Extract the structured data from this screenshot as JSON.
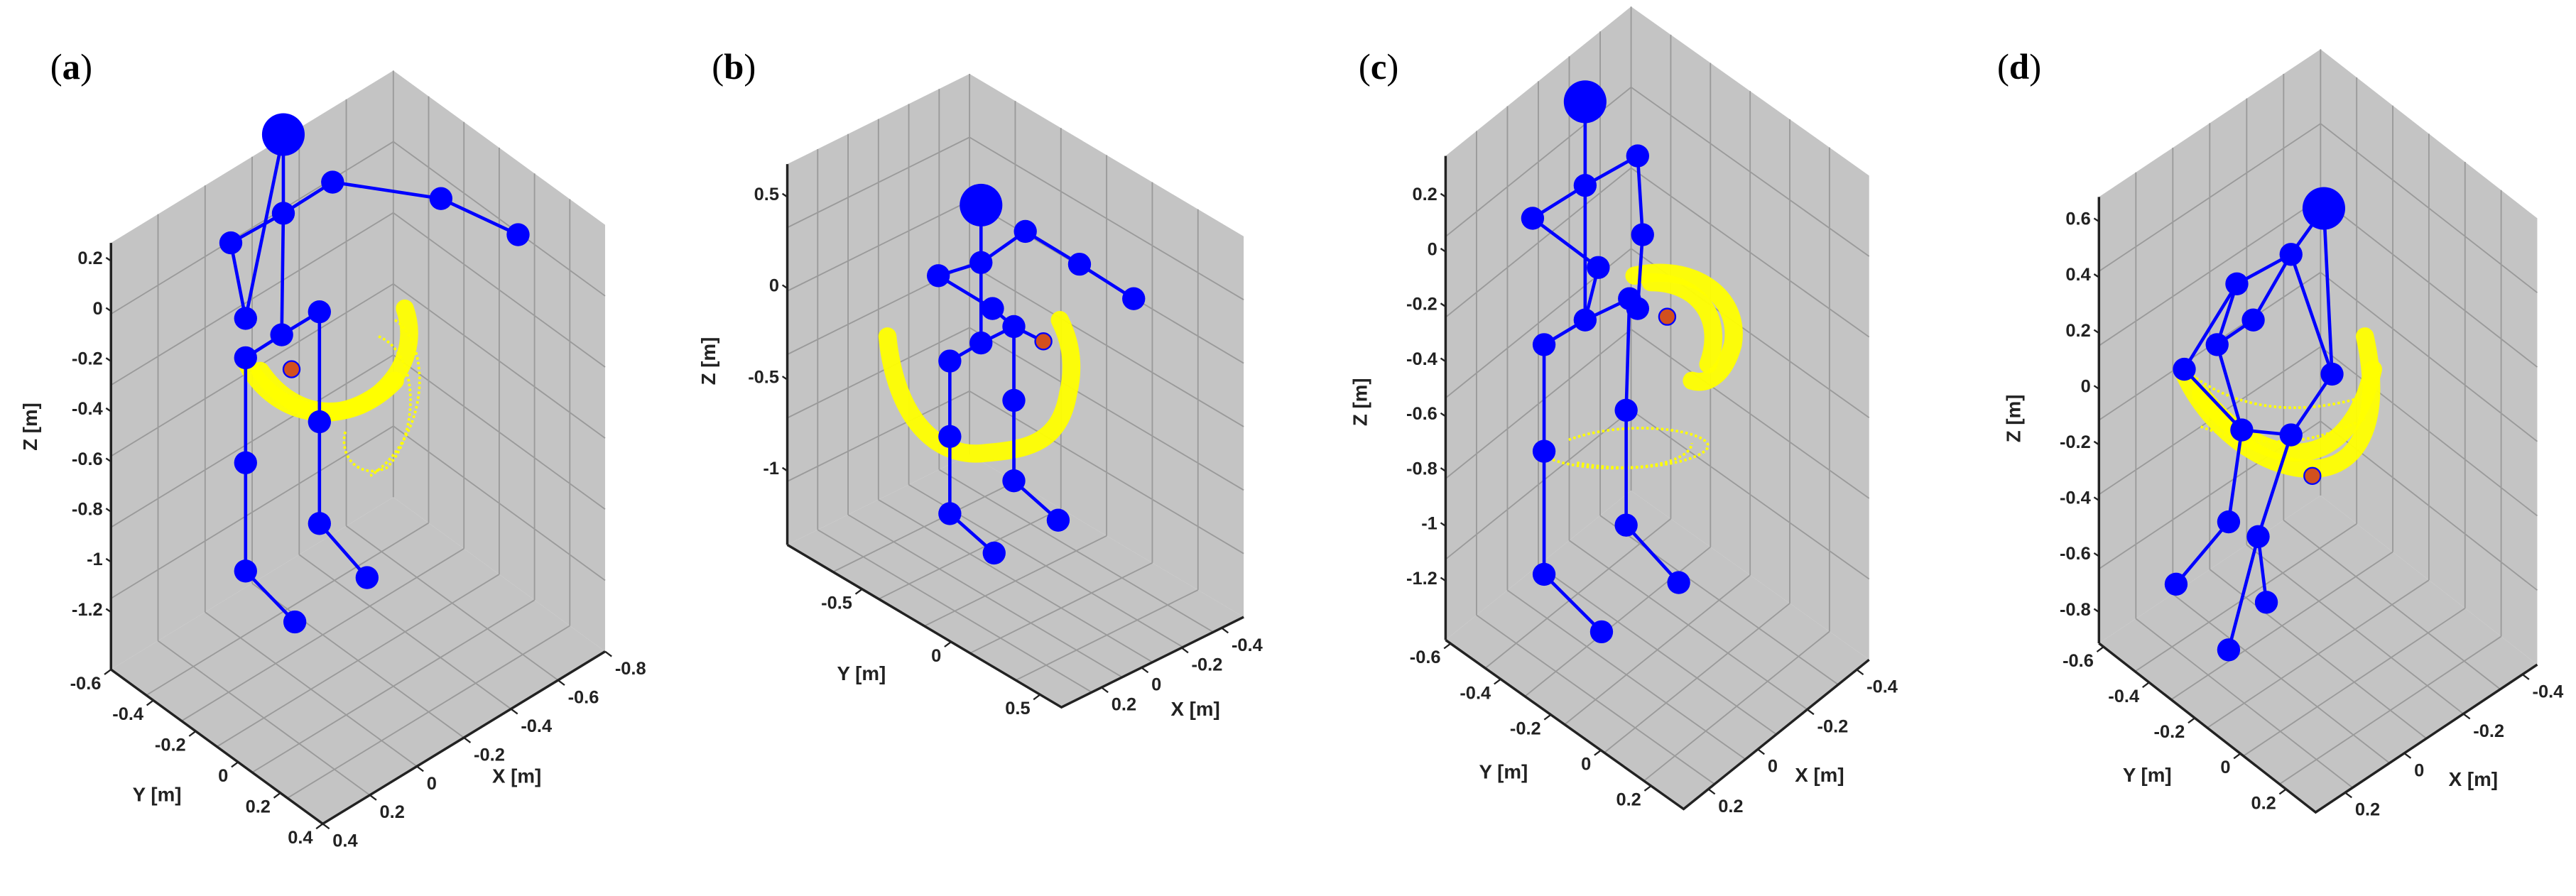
{
  "colors": {
    "skeleton": "#0000ff",
    "trajectory": "#ffff00",
    "marker": "#d2501e",
    "pane": "#c4c4c4",
    "grid": "#9a9a9a"
  },
  "chart_data": [
    {
      "type": "scatter",
      "panel": "a",
      "label_letter": "a",
      "xlabel": "X [m]",
      "ylabel": "Y [m]",
      "zlabel": "Z [m]",
      "xticks": [
        0.4,
        0.2,
        0,
        -0.2,
        -0.4,
        -0.6,
        -0.8
      ],
      "yticks": [
        -0.6,
        -0.4,
        -0.2,
        0,
        0.2,
        0.4
      ],
      "zticks": [
        0.2,
        0,
        -0.2,
        -0.4,
        -0.6,
        -0.8,
        -1,
        -1.2
      ],
      "xlim": [
        0.4,
        -0.8
      ],
      "ylim": [
        -0.6,
        0.4
      ],
      "grid": true,
      "series": [
        {
          "name": "skeleton joints",
          "marker": "circle"
        },
        {
          "name": "trajectory",
          "marker": "dot"
        }
      ]
    },
    {
      "type": "scatter",
      "panel": "b",
      "label_letter": "b",
      "xlabel": "X [m]",
      "ylabel": "Y [m]",
      "zlabel": "Z [m]",
      "xticks": [
        0.2,
        0,
        -0.2,
        -0.4
      ],
      "yticks": [
        -0.5,
        0,
        0.5
      ],
      "zticks": [
        0.5,
        0,
        -0.5,
        -1
      ],
      "xlim": [
        0.4,
        -0.51
      ],
      "ylim": [
        -0.92,
        0.62
      ],
      "grid": true,
      "series": [
        {
          "name": "skeleton joints",
          "marker": "circle"
        },
        {
          "name": "trajectory",
          "marker": "dot"
        }
      ]
    },
    {
      "type": "scatter",
      "panel": "c",
      "label_letter": "c",
      "xlabel": "X [m]",
      "ylabel": "Y [m]",
      "zlabel": "Z [m]",
      "xticks": [
        0.2,
        0,
        -0.2,
        -0.4
      ],
      "yticks": [
        -0.6,
        -0.4,
        -0.2,
        0,
        0.2
      ],
      "zticks": [
        0.2,
        0,
        -0.2,
        -0.4,
        -0.6,
        -0.8,
        -1,
        -1.2
      ],
      "xlim": [
        0.3,
        -0.45
      ],
      "ylim": [
        -0.62,
        0.33
      ],
      "grid": true,
      "series": [
        {
          "name": "skeleton joints",
          "marker": "circle"
        },
        {
          "name": "trajectory",
          "marker": "dot"
        }
      ]
    },
    {
      "type": "scatter",
      "panel": "d",
      "label_letter": "d",
      "xlabel": "X [m]",
      "ylabel": "Y [m]",
      "zlabel": "Z [m]",
      "xticks": [
        0.2,
        0,
        -0.2,
        -0.4
      ],
      "yticks": [
        -0.6,
        -0.4,
        -0.2,
        0,
        0.2
      ],
      "zticks": [
        0.6,
        0.4,
        0.2,
        0,
        -0.2,
        -0.4,
        -0.6,
        -0.8
      ],
      "xlim": [
        0.3,
        -0.45
      ],
      "ylim": [
        -0.62,
        0.33
      ],
      "grid": true,
      "series": [
        {
          "name": "skeleton joints",
          "marker": "circle"
        },
        {
          "name": "trajectory",
          "marker": "dot"
        }
      ]
    }
  ]
}
